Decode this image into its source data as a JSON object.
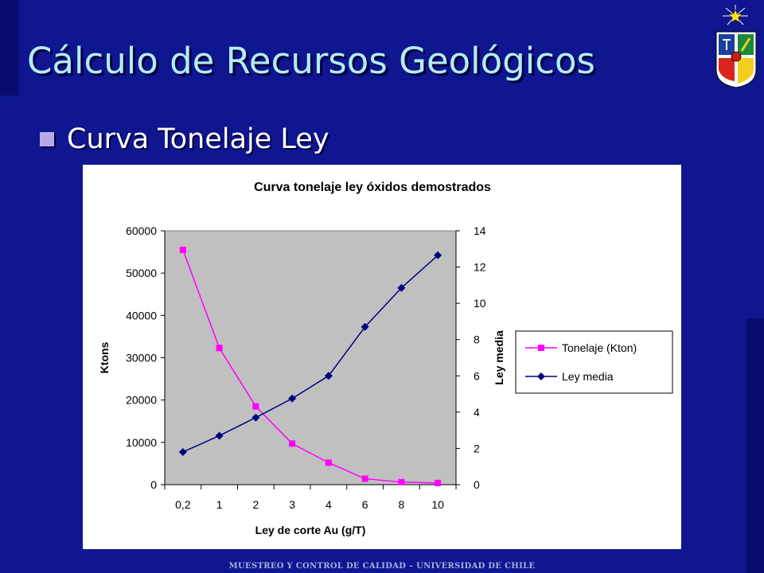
{
  "slide": {
    "title": "Cálculo de Recursos Geológicos",
    "bullet": "Curva Tonelaje Ley",
    "footer": "MUESTREO Y CONTROL DE CALIDAD – UNIVERSIDAD DE CHILE"
  },
  "colors": {
    "background": "#0f1690",
    "title": "#b6ecf2",
    "plot_area": "#c0c0c0",
    "tonelaje": "#ff00ff",
    "ley": "#000080"
  },
  "icons": {
    "emblem": "university-crest-icon"
  },
  "chart_data": {
    "type": "line",
    "title": "Curva tonelaje ley óxidos demostrados",
    "xlabel": "Ley de corte Au (g/T)",
    "ylabel": "Ktons",
    "y2label": "Ley media",
    "categories": [
      "0,2",
      "1",
      "2",
      "3",
      "4",
      "6",
      "8",
      "10"
    ],
    "ylim": [
      0,
      60000
    ],
    "y2lim": [
      0,
      14
    ],
    "yticks": [
      "0",
      "10000",
      "20000",
      "30000",
      "40000",
      "50000",
      "60000"
    ],
    "y2ticks": [
      "0",
      "2",
      "4",
      "6",
      "8",
      "10",
      "12",
      "14"
    ],
    "legend_position": "right",
    "series": [
      {
        "name": "Tonelaje (Kton)",
        "axis": "left",
        "marker": "square",
        "color": "#ff00ff",
        "values": [
          55500,
          32300,
          18500,
          9700,
          5200,
          1400,
          600,
          400
        ]
      },
      {
        "name": "Ley media",
        "axis": "right",
        "marker": "diamond",
        "color": "#000080",
        "values": [
          1.8,
          2.7,
          3.7,
          4.75,
          6.0,
          8.7,
          10.85,
          12.65
        ]
      }
    ]
  }
}
